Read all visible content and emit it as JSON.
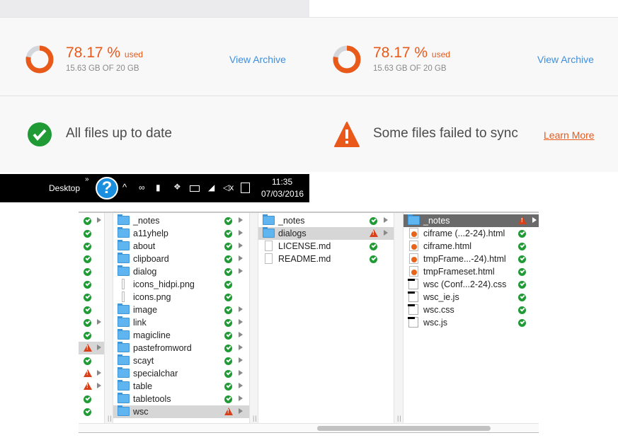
{
  "storage": [
    {
      "percent": "78.17 %",
      "used_label": "used",
      "detail": "15.63 GB OF 20 GB",
      "percent_value": 78.17,
      "link": "View Archive"
    },
    {
      "percent": "78.17 %",
      "used_label": "used",
      "detail": "15.63 GB OF 20 GB",
      "percent_value": 78.17,
      "link": "View Archive"
    }
  ],
  "sync": {
    "ok_text": "All files up to date",
    "fail_text": "Some files failed to sync",
    "learn_more": "Learn More"
  },
  "colors": {
    "accent": "#e8591a",
    "link": "#3d8fe0",
    "ok": "#1f9a35",
    "warn": "#d8401a"
  },
  "taskbar": {
    "desktop": "Desktop",
    "chevron": "»",
    "time": "11:35",
    "date": "07/03/2016",
    "icons": [
      "help-icon",
      "chevron-up-icon",
      "creative-cloud-icon",
      "lock-icon",
      "dropbox-icon",
      "battery-icon",
      "wifi-icon",
      "volume-muted-icon",
      "notifications-icon"
    ]
  },
  "finder": {
    "col0": [
      {
        "s": "ok",
        "a": true
      },
      {
        "s": "ok"
      },
      {
        "s": "ok"
      },
      {
        "s": "ok"
      },
      {
        "s": "ok"
      },
      {
        "s": "ok"
      },
      {
        "s": "ok"
      },
      {
        "s": "ok"
      },
      {
        "s": "ok",
        "a": true
      },
      {
        "s": "ok"
      },
      {
        "s": "warn",
        "a": true,
        "sel": true
      },
      {
        "s": "ok"
      },
      {
        "s": "warn",
        "a": true
      },
      {
        "s": "warn",
        "a": true
      },
      {
        "s": "ok"
      },
      {
        "s": "ok"
      }
    ],
    "col1": [
      {
        "n": "_notes",
        "t": "folder",
        "s": "ok",
        "a": true
      },
      {
        "n": "a11yhelp",
        "t": "folder",
        "s": "ok",
        "a": true
      },
      {
        "n": "about",
        "t": "folder",
        "s": "ok",
        "a": true
      },
      {
        "n": "clipboard",
        "t": "folder",
        "s": "ok",
        "a": true
      },
      {
        "n": "dialog",
        "t": "folder",
        "s": "ok",
        "a": true
      },
      {
        "n": "icons_hidpi.png",
        "t": "img",
        "s": "ok"
      },
      {
        "n": "icons.png",
        "t": "img",
        "s": "ok"
      },
      {
        "n": "image",
        "t": "folder",
        "s": "ok",
        "a": true
      },
      {
        "n": "link",
        "t": "folder",
        "s": "ok",
        "a": true
      },
      {
        "n": "magicline",
        "t": "folder",
        "s": "ok",
        "a": true
      },
      {
        "n": "pastefromword",
        "t": "folder",
        "s": "ok",
        "a": true
      },
      {
        "n": "scayt",
        "t": "folder",
        "s": "ok",
        "a": true
      },
      {
        "n": "specialchar",
        "t": "folder",
        "s": "ok",
        "a": true
      },
      {
        "n": "table",
        "t": "folder",
        "s": "ok",
        "a": true
      },
      {
        "n": "tabletools",
        "t": "folder",
        "s": "ok",
        "a": true
      },
      {
        "n": "wsc",
        "t": "folder",
        "s": "warn",
        "a": true,
        "sel": true
      }
    ],
    "col2": [
      {
        "n": "_notes",
        "t": "folder",
        "s": "ok",
        "a": true
      },
      {
        "n": "dialogs",
        "t": "folder",
        "s": "warn",
        "a": true,
        "sel": true
      },
      {
        "n": "LICENSE.md",
        "t": "file",
        "s": "ok"
      },
      {
        "n": "README.md",
        "t": "file",
        "s": "ok"
      }
    ],
    "col3": [
      {
        "n": "_notes",
        "t": "folder",
        "s": "warn",
        "a": true,
        "dark": true
      },
      {
        "n": "ciframe (...2-24).html",
        "t": "ff",
        "s": "ok"
      },
      {
        "n": "ciframe.html",
        "t": "ff",
        "s": "ok"
      },
      {
        "n": "tmpFrame...-24).html",
        "t": "ff",
        "s": "ok"
      },
      {
        "n": "tmpFrameset.html",
        "t": "ff",
        "s": "ok"
      },
      {
        "n": "wsc (Conf...2-24).css",
        "t": "doc",
        "s": "ok"
      },
      {
        "n": "wsc_ie.js",
        "t": "doc",
        "s": "ok"
      },
      {
        "n": "wsc.css",
        "t": "doc",
        "s": "ok"
      },
      {
        "n": "wsc.js",
        "t": "doc",
        "s": "ok"
      }
    ]
  }
}
